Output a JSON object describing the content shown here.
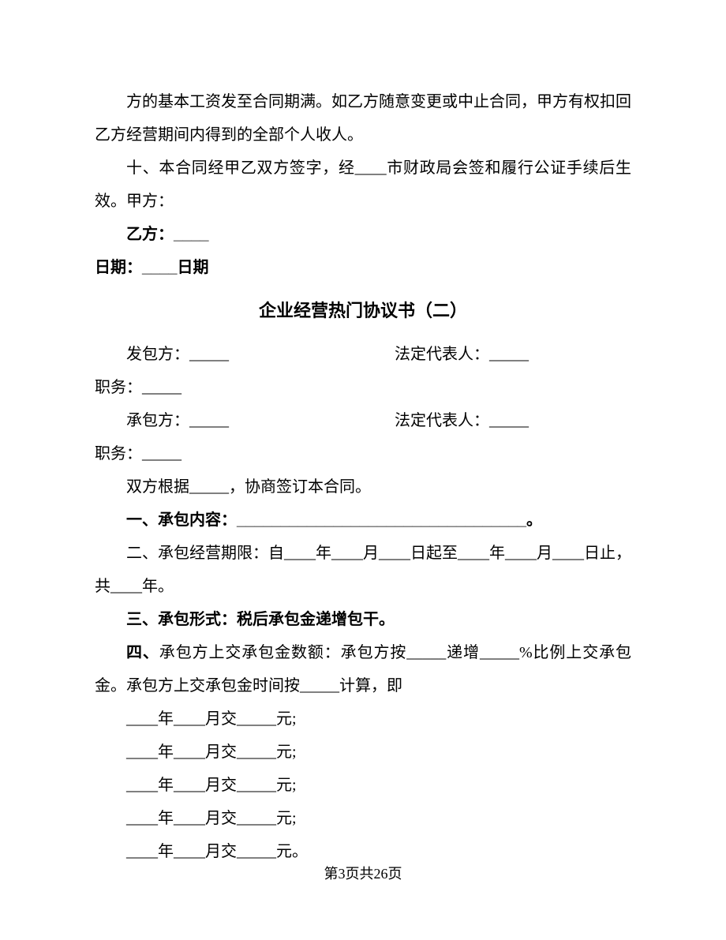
{
  "body": {
    "p1": "方的基本工资发至合同期满。如乙方随意变更或中止合同，甲方有权扣回乙方经营期间内得到的全部个人收人。",
    "p2": "十、本合同经甲乙双方签字，经____市财政局会签和履行公证手续后生效。甲方：",
    "p3": "乙方：____",
    "p4": "日期：____日期",
    "title": "企业经营热门协议书（二）",
    "p5_left": "发包方：_____",
    "p5_right": "法定代表人：_____",
    "p6": "职务：_____",
    "p7_left": "承包方：_____",
    "p7_right": "法定代表人：_____",
    "p8": "职务：_____",
    "p9": "双方根据_____，协商签订本合同。",
    "p10": "一、承包内容：_________________________________。",
    "p11": "二、承包经营期限：自____年____月____日起至____年____月____日止，共____年。",
    "p12": "三、承包形式：税后承包金递增包干。",
    "p13_b": "四、",
    "p13": "承包方上交承包金数额：承包方按_____递增_____%比例上交承包金。承包方上交承包金时间按_____计算，即",
    "p14": "____年____月交_____元;",
    "p15": "____年____月交_____元;",
    "p16": "____年____月交_____元;",
    "p17": "____年____月交_____元;",
    "p18": "____年____月交_____元。"
  },
  "footer": "第3页共26页"
}
